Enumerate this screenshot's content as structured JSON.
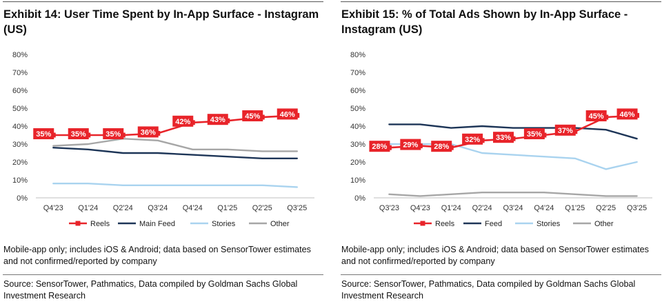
{
  "panels": [
    {
      "title": "Exhibit 14: User Time Spent by In-App Surface - Instagram (US)",
      "note": "Mobile-app only; includes iOS & Android; data based on SensorTower estimates and not confirmed/reported by company",
      "source": "Source: SensorTower, Pathmatics, Data compiled by Goldman Sachs Global Investment Research"
    },
    {
      "title": "Exhibit 15: % of Total Ads Shown by In-App Surface - Instagram (US)",
      "note": "Mobile-app only; includes iOS & Android; data based on SensorTower estimates and not confirmed/reported by company",
      "source": "Source: SensorTower, Pathmatics, Data compiled by Goldman Sachs Global Investment Research"
    }
  ],
  "chart_data": [
    {
      "type": "line",
      "title": "Exhibit 14: User Time Spent by In-App Surface - Instagram (US)",
      "categories": [
        "Q4'23",
        "Q1'24",
        "Q2'24",
        "Q3'24",
        "Q4'24",
        "Q1'25",
        "Q2'25",
        "Q3'25"
      ],
      "ylim": [
        0,
        80
      ],
      "yticks": [
        "0%",
        "10%",
        "20%",
        "30%",
        "40%",
        "50%",
        "60%",
        "70%",
        "80%"
      ],
      "grid": false,
      "legend": "bottom",
      "series": [
        {
          "name": "Reels",
          "color": "#e8242a",
          "values": [
            35,
            35,
            35,
            36,
            42,
            43,
            45,
            46
          ],
          "labels": [
            "35%",
            "35%",
            "35%",
            "36%",
            "42%",
            "43%",
            "45%",
            "46%"
          ]
        },
        {
          "name": "Main Feed",
          "color": "#1d3557",
          "values": [
            28,
            27,
            25,
            25,
            24,
            23,
            22,
            22
          ]
        },
        {
          "name": "Stories",
          "color": "#a9d3ef",
          "values": [
            8,
            8,
            7,
            7,
            7,
            7,
            7,
            6
          ]
        },
        {
          "name": "Other",
          "color": "#a6a6a6",
          "values": [
            29,
            30,
            33,
            32,
            27,
            27,
            26,
            26
          ]
        }
      ]
    },
    {
      "type": "line",
      "title": "Exhibit 15: % of Total Ads Shown by In-App Surface - Instagram (US)",
      "categories": [
        "Q3'23",
        "Q4'23",
        "Q1'24",
        "Q2'24",
        "Q3'24",
        "Q4'24",
        "Q1'25",
        "Q2'25",
        "Q3'25"
      ],
      "ylim": [
        0,
        80
      ],
      "yticks": [
        "0%",
        "10%",
        "20%",
        "30%",
        "40%",
        "50%",
        "60%",
        "70%",
        "80%"
      ],
      "grid": false,
      "legend": "bottom",
      "series": [
        {
          "name": "Reels",
          "color": "#e8242a",
          "values": [
            28,
            29,
            28,
            32,
            33,
            35,
            37,
            45,
            46
          ],
          "labels": [
            "28%",
            "29%",
            "28%",
            "32%",
            "33%",
            "35%",
            "37%",
            "45%",
            "46%"
          ]
        },
        {
          "name": "Feed",
          "color": "#1d3557",
          "values": [
            41,
            41,
            39,
            40,
            39,
            39,
            39,
            38,
            33
          ]
        },
        {
          "name": "Stories",
          "color": "#a9d3ef",
          "values": [
            30,
            30,
            30,
            25,
            24,
            23,
            22,
            16,
            20
          ]
        },
        {
          "name": "Other",
          "color": "#a6a6a6",
          "values": [
            2,
            1,
            2,
            3,
            3,
            3,
            2,
            1,
            1
          ]
        }
      ]
    }
  ]
}
